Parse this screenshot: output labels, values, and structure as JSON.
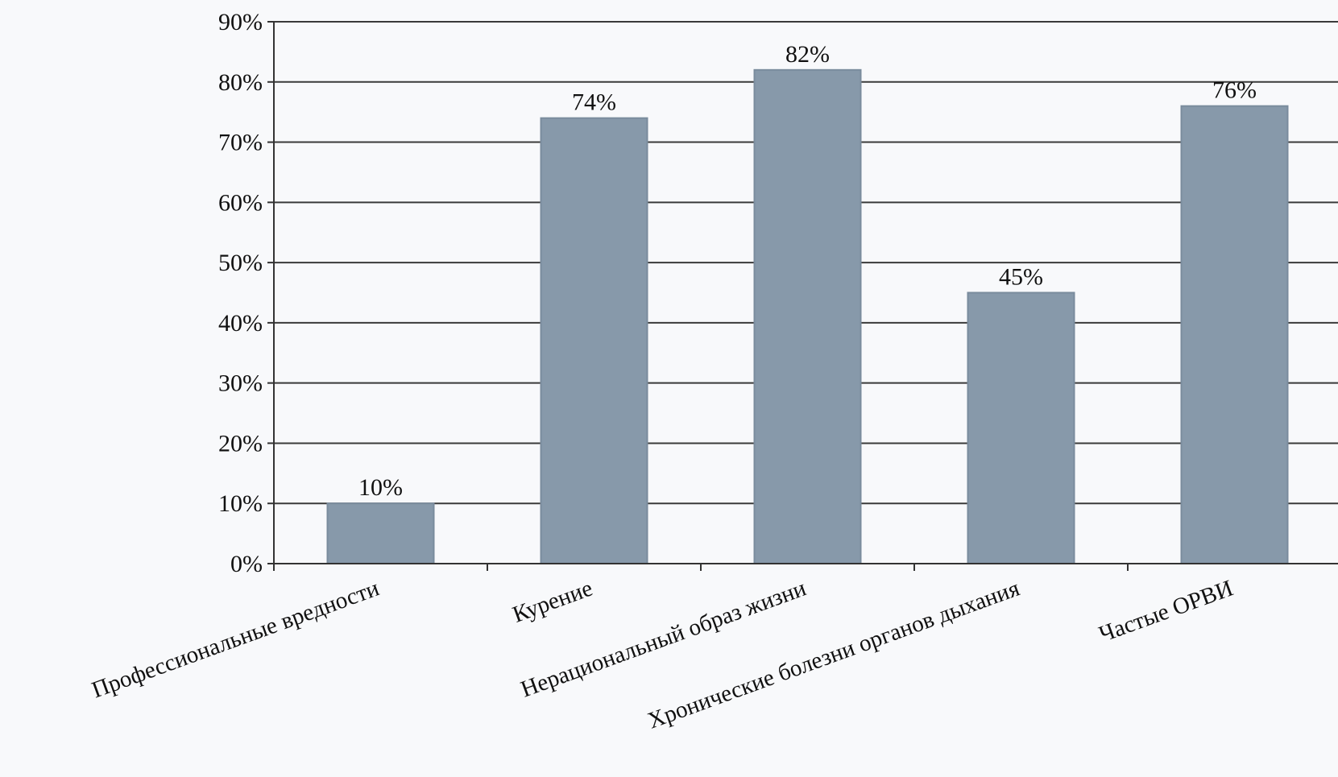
{
  "colors": {
    "background": "#f8f9fb",
    "bar": "#8799aa",
    "bar_border": "#7a8c9d",
    "grid": "#3a3a3a",
    "axis": "#333333"
  },
  "chart_data": {
    "type": "bar",
    "categories": [
      "Профессиональные вредности",
      "Курение",
      "Нерациональный образ жизни",
      "Хронические болезни органов дыхания",
      "Частые ОРВИ"
    ],
    "values": [
      10,
      74,
      82,
      45,
      76
    ],
    "data_labels": [
      "10%",
      "74%",
      "82%",
      "45%",
      "76%"
    ],
    "title": "",
    "xlabel": "",
    "ylabel": "",
    "ylim": [
      0,
      90
    ],
    "y_ticks": [
      0,
      10,
      20,
      30,
      40,
      50,
      60,
      70,
      80,
      90
    ],
    "y_tick_labels": [
      "0%",
      "10%",
      "20%",
      "30%",
      "40%",
      "50%",
      "60%",
      "70%",
      "80%",
      "90%"
    ],
    "grid": true,
    "legend": "none"
  }
}
